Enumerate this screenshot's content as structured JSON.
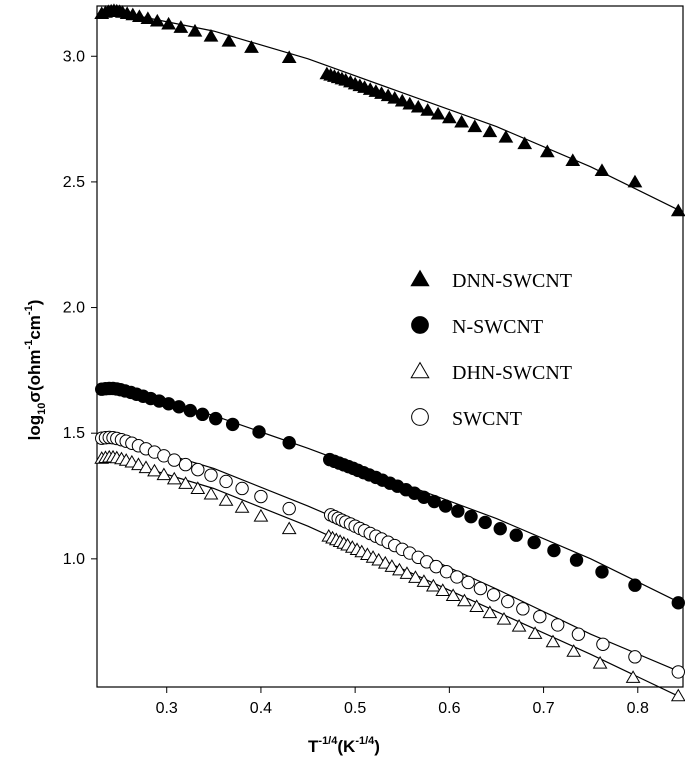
{
  "chart_data": {
    "type": "scatter",
    "xlabel_base": "T",
    "xlabel_sup": "-1/4",
    "xlabel_paren": "(K",
    "xlabel_paren_sup": "-1/4",
    "xlabel_close": ")",
    "ylabel_log": "log",
    "ylabel_sub": "10",
    "ylabel_mid": "σ(ohm",
    "ylabel_sup1": "-1",
    "ylabel_cm": "cm",
    "ylabel_sup2": "-1",
    "ylabel_close": ")",
    "xlim": [
      0.226,
      0.848
    ],
    "ylim": [
      0.49,
      3.2
    ],
    "x_ticks": [
      0.3,
      0.4,
      0.5,
      0.6,
      0.7,
      0.8
    ],
    "x_tick_labels": [
      "0.3",
      "0.4",
      "0.5",
      "0.6",
      "0.7",
      "0.8"
    ],
    "y_ticks": [
      1.0,
      1.5,
      2.0,
      2.5,
      3.0
    ],
    "y_tick_labels": [
      "1.0",
      "1.5",
      "2.0",
      "2.5",
      "3.0"
    ],
    "legend_position": "center-right",
    "series": [
      {
        "name": "DNN-SWCNT",
        "marker": "triangle-filled",
        "fit": [
          [
            0.23,
            3.17
          ],
          [
            0.27,
            3.16
          ],
          [
            0.35,
            3.1
          ],
          [
            0.45,
            2.99
          ],
          [
            0.55,
            2.855
          ],
          [
            0.65,
            2.72
          ],
          [
            0.75,
            2.56
          ],
          [
            0.845,
            2.385
          ]
        ],
        "x": [
          0.231,
          0.235,
          0.238,
          0.241,
          0.244,
          0.247,
          0.25,
          0.253,
          0.258,
          0.264,
          0.271,
          0.28,
          0.29,
          0.302,
          0.315,
          0.33,
          0.347,
          0.366,
          0.39,
          0.43,
          0.47,
          0.474,
          0.478,
          0.482,
          0.486,
          0.49,
          0.495,
          0.5,
          0.505,
          0.51,
          0.516,
          0.522,
          0.528,
          0.535,
          0.542,
          0.55,
          0.558,
          0.567,
          0.577,
          0.588,
          0.6,
          0.613,
          0.627,
          0.643,
          0.66,
          0.68,
          0.704,
          0.731,
          0.762,
          0.797,
          0.843
        ],
        "y": [
          3.17,
          3.175,
          3.178,
          3.18,
          3.182,
          3.18,
          3.178,
          3.175,
          3.17,
          3.165,
          3.158,
          3.15,
          3.14,
          3.128,
          3.115,
          3.1,
          3.08,
          3.06,
          3.035,
          2.995,
          2.93,
          2.925,
          2.92,
          2.915,
          2.91,
          2.905,
          2.898,
          2.89,
          2.883,
          2.876,
          2.868,
          2.86,
          2.852,
          2.843,
          2.833,
          2.822,
          2.81,
          2.798,
          2.785,
          2.77,
          2.755,
          2.738,
          2.72,
          2.7,
          2.678,
          2.652,
          2.62,
          2.585,
          2.545,
          2.5,
          2.385
        ]
      },
      {
        "name": "N-SWCNT",
        "marker": "circle-filled",
        "fit": [
          [
            0.23,
            1.675
          ],
          [
            0.27,
            1.655
          ],
          [
            0.35,
            1.57
          ],
          [
            0.45,
            1.44
          ],
          [
            0.55,
            1.3
          ],
          [
            0.65,
            1.16
          ],
          [
            0.75,
            1.0
          ],
          [
            0.845,
            0.825
          ]
        ],
        "x": [
          0.231,
          0.235,
          0.239,
          0.243,
          0.247,
          0.251,
          0.256,
          0.262,
          0.268,
          0.275,
          0.283,
          0.292,
          0.302,
          0.313,
          0.325,
          0.338,
          0.352,
          0.37,
          0.398,
          0.43,
          0.473,
          0.478,
          0.483,
          0.488,
          0.493,
          0.498,
          0.503,
          0.509,
          0.515,
          0.522,
          0.529,
          0.537,
          0.545,
          0.554,
          0.563,
          0.573,
          0.584,
          0.596,
          0.609,
          0.623,
          0.638,
          0.654,
          0.671,
          0.69,
          0.711,
          0.735,
          0.762,
          0.797,
          0.843
        ],
        "y": [
          1.675,
          1.677,
          1.678,
          1.678,
          1.676,
          1.673,
          1.668,
          1.662,
          1.655,
          1.647,
          1.638,
          1.628,
          1.617,
          1.605,
          1.59,
          1.575,
          1.558,
          1.535,
          1.505,
          1.462,
          1.395,
          1.388,
          1.381,
          1.374,
          1.367,
          1.36,
          1.352,
          1.343,
          1.334,
          1.324,
          1.313,
          1.301,
          1.289,
          1.275,
          1.261,
          1.245,
          1.228,
          1.21,
          1.19,
          1.168,
          1.145,
          1.12,
          1.094,
          1.065,
          1.033,
          0.995,
          0.948,
          0.895,
          0.825
        ]
      },
      {
        "name": "DHN-SWCNT",
        "marker": "triangle-open",
        "fit": [
          [
            0.23,
            1.4
          ],
          [
            0.27,
            1.37
          ],
          [
            0.35,
            1.28
          ],
          [
            0.45,
            1.13
          ],
          [
            0.55,
            0.96
          ],
          [
            0.65,
            0.79
          ],
          [
            0.75,
            0.62
          ],
          [
            0.845,
            0.45
          ]
        ],
        "x": [
          0.231,
          0.235,
          0.239,
          0.243,
          0.247,
          0.252,
          0.257,
          0.263,
          0.27,
          0.278,
          0.287,
          0.297,
          0.308,
          0.32,
          0.333,
          0.347,
          0.363,
          0.38,
          0.4,
          0.43,
          0.472,
          0.476,
          0.48,
          0.484,
          0.488,
          0.492,
          0.497,
          0.502,
          0.507,
          0.513,
          0.519,
          0.525,
          0.532,
          0.539,
          0.547,
          0.555,
          0.564,
          0.573,
          0.583,
          0.593,
          0.604,
          0.616,
          0.629,
          0.643,
          0.658,
          0.674,
          0.691,
          0.71,
          0.732,
          0.76,
          0.795,
          0.843
        ],
        "y": [
          1.4,
          1.403,
          1.405,
          1.405,
          1.402,
          1.398,
          1.392,
          1.385,
          1.375,
          1.363,
          1.35,
          1.335,
          1.318,
          1.3,
          1.28,
          1.258,
          1.233,
          1.205,
          1.17,
          1.12,
          1.09,
          1.083,
          1.076,
          1.069,
          1.062,
          1.055,
          1.046,
          1.037,
          1.028,
          1.017,
          1.006,
          0.995,
          0.983,
          0.97,
          0.956,
          0.942,
          0.926,
          0.91,
          0.892,
          0.874,
          0.854,
          0.833,
          0.81,
          0.786,
          0.76,
          0.732,
          0.703,
          0.67,
          0.632,
          0.585,
          0.528,
          0.455
        ]
      },
      {
        "name": "SWCNT",
        "marker": "circle-open",
        "fit": [
          [
            0.23,
            1.48
          ],
          [
            0.27,
            1.45
          ],
          [
            0.35,
            1.36
          ],
          [
            0.45,
            1.21
          ],
          [
            0.55,
            1.05
          ],
          [
            0.65,
            0.88
          ],
          [
            0.75,
            0.7
          ],
          [
            0.845,
            0.55
          ]
        ],
        "x": [
          0.231,
          0.235,
          0.239,
          0.243,
          0.247,
          0.252,
          0.257,
          0.263,
          0.27,
          0.278,
          0.287,
          0.297,
          0.308,
          0.32,
          0.333,
          0.347,
          0.363,
          0.38,
          0.4,
          0.43,
          0.474,
          0.478,
          0.482,
          0.486,
          0.49,
          0.495,
          0.5,
          0.505,
          0.51,
          0.516,
          0.522,
          0.528,
          0.535,
          0.542,
          0.55,
          0.558,
          0.567,
          0.576,
          0.586,
          0.597,
          0.608,
          0.62,
          0.633,
          0.647,
          0.662,
          0.678,
          0.696,
          0.715,
          0.737,
          0.763,
          0.797,
          0.843
        ],
        "y": [
          1.48,
          1.482,
          1.483,
          1.482,
          1.479,
          1.474,
          1.468,
          1.46,
          1.45,
          1.438,
          1.425,
          1.41,
          1.393,
          1.375,
          1.355,
          1.333,
          1.308,
          1.28,
          1.248,
          1.2,
          1.175,
          1.168,
          1.161,
          1.154,
          1.147,
          1.139,
          1.13,
          1.121,
          1.112,
          1.101,
          1.09,
          1.079,
          1.066,
          1.053,
          1.038,
          1.023,
          1.006,
          0.988,
          0.969,
          0.949,
          0.928,
          0.906,
          0.882,
          0.857,
          0.83,
          0.801,
          0.77,
          0.737,
          0.7,
          0.66,
          0.61,
          0.55
        ]
      }
    ]
  }
}
